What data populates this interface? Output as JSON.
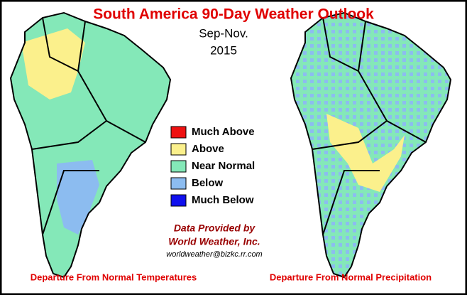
{
  "title": "South America 90-Day Weather Outlook",
  "period": "Sep-Nov.",
  "year": "2015",
  "legend": [
    {
      "label": "Much Above",
      "color": "#ee1111"
    },
    {
      "label": "Above",
      "color": "#fbf08c"
    },
    {
      "label": "Near Normal",
      "color": "#84e8b8"
    },
    {
      "label": "Below",
      "color": "#8cbcf0"
    },
    {
      "label": "Much Below",
      "color": "#1010ee"
    }
  ],
  "credit": {
    "line1": "Data Provided by",
    "line2": "World Weather, Inc.",
    "email": "worldweather@bizkc.rr.com"
  },
  "captions": {
    "left": "Departure From Normal Temperatures",
    "right": "Departure From Normal Precipitation"
  }
}
